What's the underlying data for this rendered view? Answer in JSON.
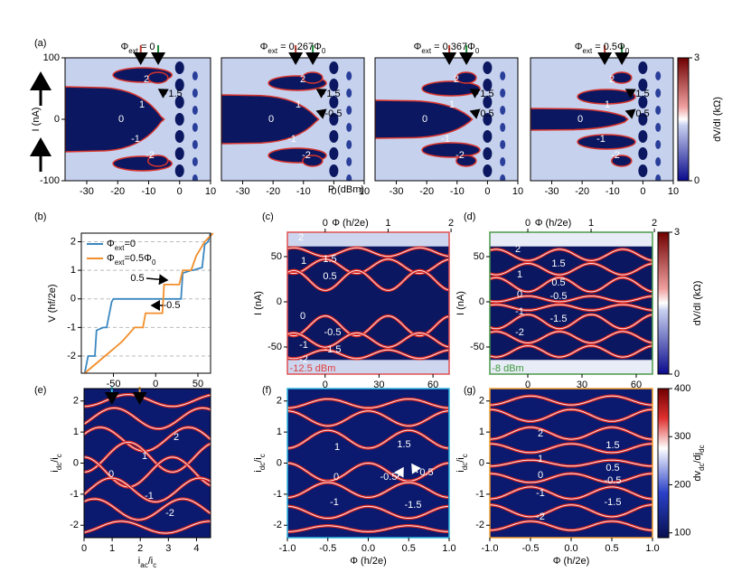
{
  "chart_data": [
    {
      "type": "heatmap",
      "panel_label": "(a)",
      "title": [
        "Φ",
        "ext",
        " = 0"
      ],
      "ylabel": [
        "I (nA)"
      ],
      "xlim": [
        -37,
        10
      ],
      "xticks": [
        -30,
        -20,
        -10,
        0,
        10
      ],
      "ylim": [
        -100,
        100
      ],
      "yticks": [
        -100,
        0,
        100
      ],
      "annotations": [
        "2",
        "1.5",
        "1",
        "0",
        "-1",
        "-2"
      ]
    },
    {
      "type": "heatmap",
      "title": [
        "Φ",
        "ext",
        " = 0.267Φ",
        "0"
      ],
      "xlabel": [
        "P (dBm)"
      ],
      "xlim": [
        -37,
        10
      ],
      "xticks": [
        -30,
        -20,
        -10,
        0,
        10
      ],
      "ylim": [
        -100,
        100
      ],
      "annotations": [
        "2",
        "1.5",
        "1",
        "-0.5",
        "0",
        "-1",
        "-2"
      ]
    },
    {
      "type": "heatmap",
      "title": [
        "Φ",
        "ext",
        " = 0.367Φ",
        "0"
      ],
      "xlim": [
        -37,
        10
      ],
      "xticks": [
        -30,
        -20,
        -10,
        0,
        10
      ],
      "ylim": [
        -100,
        100
      ],
      "annotations": [
        "2",
        "1.5",
        "1",
        "0.5",
        "0",
        "-1",
        "-2"
      ]
    },
    {
      "type": "heatmap",
      "title": [
        "Φ",
        "ext",
        " = 0.5Φ",
        "0"
      ],
      "xlim": [
        -37,
        10
      ],
      "xticks": [
        -30,
        -20,
        -10,
        0,
        10
      ],
      "ylim": [
        -100,
        100
      ],
      "annotations": [
        "2",
        "1.5",
        "1",
        "0.5",
        "0",
        "-1",
        "-2"
      ],
      "colorbar": {
        "label": [
          "dV/dI (kΩ)"
        ],
        "lim": [
          0,
          3
        ],
        "ticks": [
          0,
          3
        ]
      }
    },
    {
      "type": "line",
      "panel_label": "(b)",
      "xlabel": [
        "I (nA)"
      ],
      "ylabel": [
        "V (hf/2e)"
      ],
      "xlim": [
        -88,
        65
      ],
      "xticks": [
        -50,
        0,
        50
      ],
      "ylim": [
        -2.6,
        2.3
      ],
      "yticks": [
        -2,
        -1,
        0,
        1,
        2
      ],
      "grid": true,
      "legend": "upper left",
      "series": [
        {
          "name": [
            "Φ",
            "ext",
            "=0"
          ],
          "color": "#3a87c0",
          "x": [
            -84,
            -80,
            -72,
            -70,
            -62,
            -58,
            -52,
            -50,
            30,
            32,
            42,
            44,
            55,
            58,
            62,
            65
          ],
          "values": [
            -2.6,
            -2,
            -2,
            -1.1,
            -1,
            -1,
            -0.1,
            0,
            0,
            0.9,
            1,
            1,
            1.1,
            1.9,
            2,
            2.3
          ]
        },
        {
          "name": [
            "Φ",
            "ext",
            "=0.5Φ",
            "0"
          ],
          "color": "#f28e2b",
          "x": [
            -84,
            -60,
            -40,
            -25,
            -15,
            -12,
            8,
            10,
            28,
            32,
            42,
            48,
            58,
            68
          ],
          "values": [
            -2.6,
            -2,
            -1.5,
            -1,
            -1,
            -0.5,
            -0.5,
            0.5,
            0.5,
            1,
            1,
            1.5,
            2,
            2.3
          ]
        }
      ],
      "annotations": [
        "0.5",
        "-0.5"
      ]
    },
    {
      "type": "heatmap",
      "panel_label": "(c)",
      "xlabel": [
        "B (μT)"
      ],
      "x2label": [
        "Φ (h/2e)"
      ],
      "ylabel": [
        "I (nA)"
      ],
      "xlim": [
        -21,
        69
      ],
      "xticks": [
        0,
        30,
        60
      ],
      "x2lim": [
        -0.6,
        1.97
      ],
      "x2ticks": [
        0,
        1,
        2
      ],
      "ylim": [
        -80,
        77
      ],
      "yticks": [
        -50,
        0,
        50
      ],
      "frame_color": "#e05050",
      "annotations": [
        "2",
        "1.5",
        "1",
        "0.5",
        "0",
        "-0.5",
        "-1.5",
        "-1",
        "-2",
        "-12.5 dBm"
      ]
    },
    {
      "type": "heatmap",
      "panel_label": "(d)",
      "xlabel": [
        "B (μT)"
      ],
      "x2label": [
        "Φ (h/2e)"
      ],
      "ylabel": [
        "I (nA)"
      ],
      "xlim": [
        -21,
        69
      ],
      "xticks": [
        0,
        30,
        60
      ],
      "x2lim": [
        -0.6,
        1.97
      ],
      "x2ticks": [
        0,
        1,
        2
      ],
      "ylim": [
        -80,
        77
      ],
      "yticks": [
        -50,
        0,
        50
      ],
      "frame_color": "#4a9a4a",
      "annotations": [
        "2",
        "1.5",
        "1",
        "0.5",
        "0",
        "-0.5",
        "-1",
        "-1.5",
        "-2",
        "-8 dBm"
      ],
      "colorbar": {
        "label": [
          "dV/dI (kΩ)"
        ],
        "lim": [
          0,
          3
        ],
        "ticks": [
          0,
          3
        ]
      }
    },
    {
      "type": "heatmap",
      "panel_label": "(e)",
      "xlabel": [
        "i",
        "ac",
        "/i",
        "c"
      ],
      "ylabel": [
        "i",
        "dc",
        "/i",
        "c"
      ],
      "xlim": [
        0,
        4.5
      ],
      "xticks": [
        0,
        1,
        2,
        3,
        4
      ],
      "ylim": [
        -2.4,
        2.4
      ],
      "yticks": [
        -2,
        -1,
        0,
        1,
        2
      ],
      "annotations": [
        "2",
        "1",
        "0",
        "-1",
        "-2"
      ]
    },
    {
      "type": "heatmap",
      "panel_label": "(f)",
      "xlabel": [
        "Φ (h/2e)"
      ],
      "ylabel": [
        "i",
        "dc",
        "/i",
        "c"
      ],
      "xlim": [
        -1,
        1
      ],
      "xticks": [
        {
          "value": -1,
          "label": "-1.0"
        },
        {
          "value": -0.5,
          "label": "-0.5"
        },
        {
          "value": 0,
          "label": "0.0"
        },
        {
          "value": 0.5,
          "label": "0.5"
        },
        {
          "value": 1,
          "label": "1.0"
        }
      ],
      "ylim": [
        -2.4,
        2.4
      ],
      "yticks": [
        -2,
        -1,
        0,
        1,
        2
      ],
      "frame_color": "#30b8e0",
      "annotations": [
        "1",
        "1.5",
        "0",
        "0.5",
        "-0.5",
        "-1",
        "-1.5"
      ]
    },
    {
      "type": "heatmap",
      "panel_label": "(g)",
      "xlabel": [
        "Φ (h/2e)"
      ],
      "ylabel": [
        "i",
        "dc",
        "/i",
        "c"
      ],
      "xlim": [
        -1,
        1
      ],
      "xticks": [
        {
          "value": -1,
          "label": "-1.0"
        },
        {
          "value": -0.5,
          "label": "-0.5"
        },
        {
          "value": 0,
          "label": "0.0"
        },
        {
          "value": 0.5,
          "label": "0.5"
        },
        {
          "value": 1,
          "label": "1.0"
        }
      ],
      "ylim": [
        -2.4,
        2.4
      ],
      "yticks": [
        -2,
        -1,
        0,
        1,
        2
      ],
      "frame_color": "#f0a030",
      "annotations": [
        "2",
        "1.5",
        "1",
        "0.5",
        "0",
        "-0.5",
        "-1",
        "-1.5",
        "-2"
      ],
      "colorbar": {
        "label": [
          "dv",
          "dc",
          "/dj",
          "dc"
        ],
        "lim": [
          90,
          400
        ],
        "ticks": [
          100,
          200,
          300,
          400
        ]
      }
    }
  ]
}
